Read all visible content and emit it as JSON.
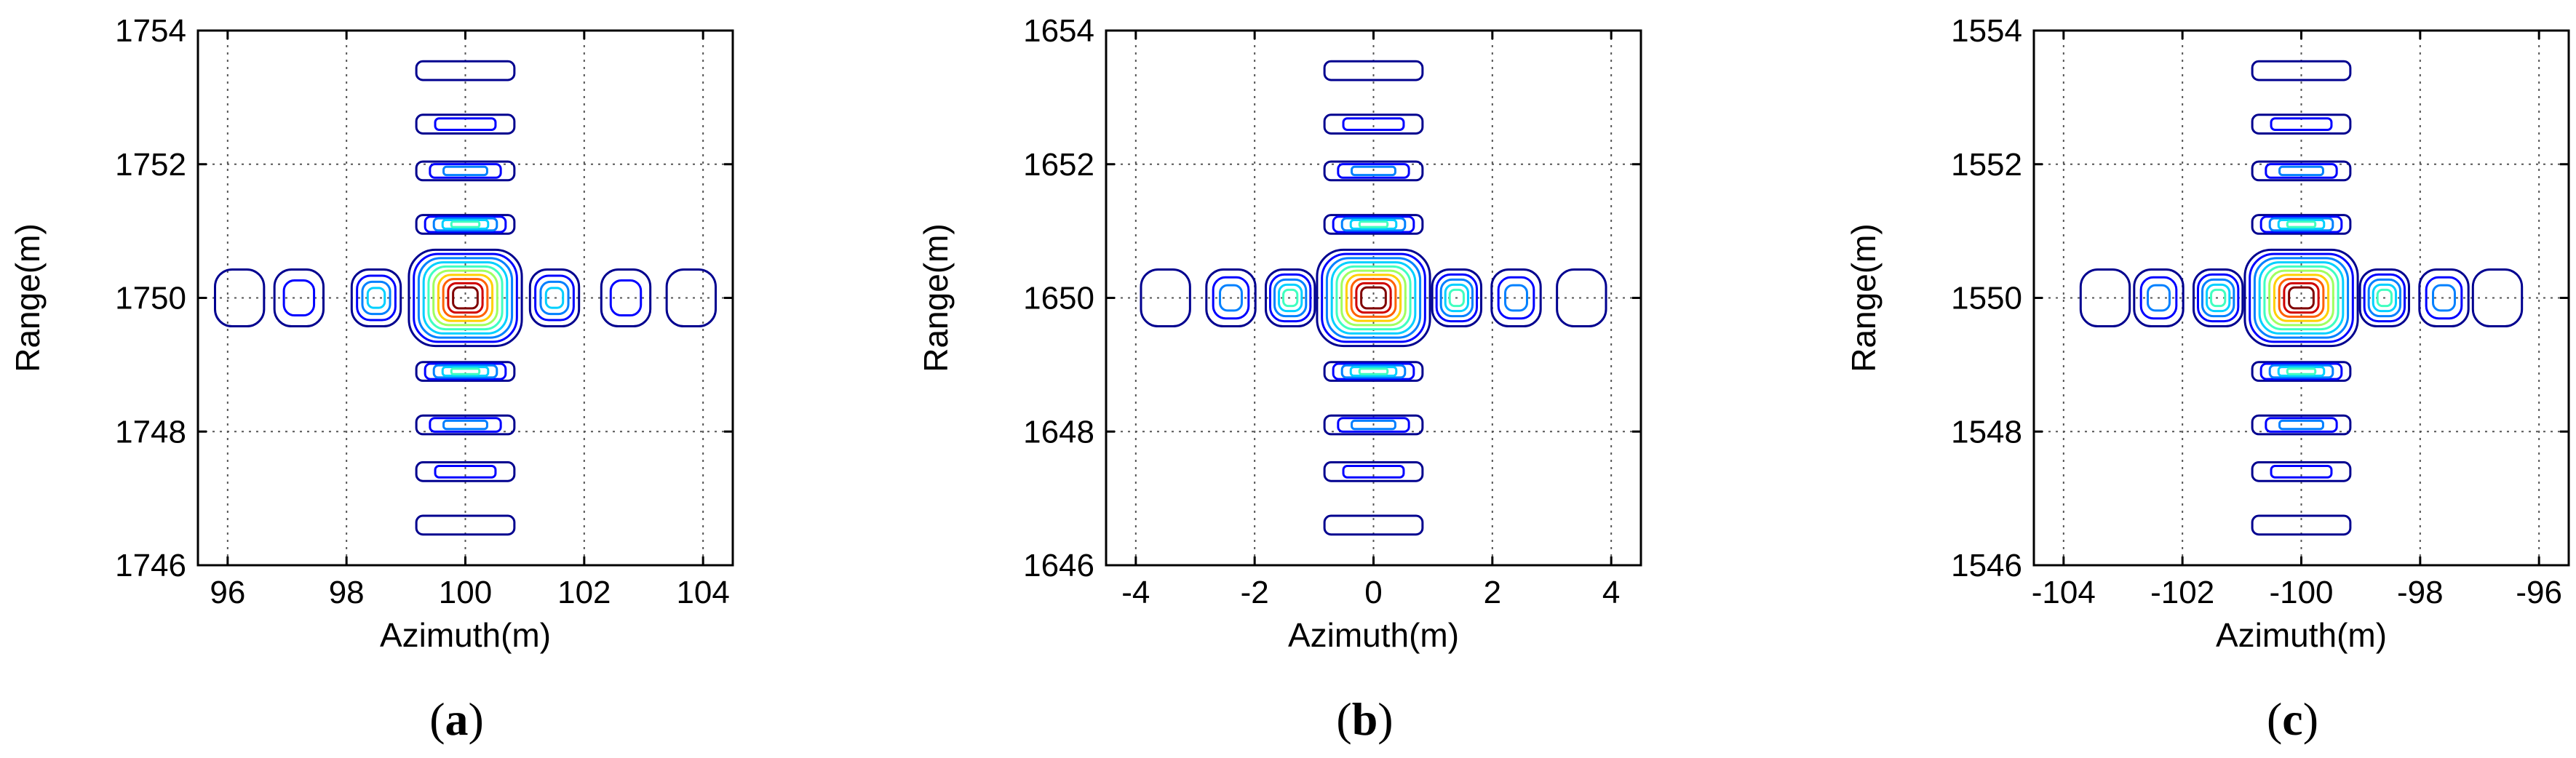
{
  "chart_data": [
    {
      "panel_label": "a",
      "type": "contour",
      "xlabel": "Azimuth(m)",
      "ylabel": "Range(m)",
      "xlim": [
        95.5,
        104.5
      ],
      "ylim": [
        1746,
        1754
      ],
      "xticks": [
        96,
        98,
        100,
        102,
        104
      ],
      "yticks": [
        1746,
        1748,
        1750,
        1752,
        1754
      ],
      "grid": true,
      "center": [
        100,
        1750
      ],
      "peak_x_offsets": [
        -3.8,
        -2.8,
        -1.5,
        0,
        1.5,
        2.7,
        3.8
      ],
      "peak_y_offsets": [
        -3.4,
        -2.6,
        -1.9,
        -1.1,
        0,
        1.1,
        1.9,
        2.6,
        3.4
      ]
    },
    {
      "panel_label": "b",
      "type": "contour",
      "xlabel": "Azimuth(m)",
      "ylabel": "Range(m)",
      "xlim": [
        -4.5,
        4.5
      ],
      "ylim": [
        1646,
        1654
      ],
      "xticks": [
        -4,
        -2,
        0,
        2,
        4
      ],
      "yticks": [
        1646,
        1648,
        1650,
        1652,
        1654
      ],
      "grid": true,
      "center": [
        0,
        1650
      ],
      "peak_x_offsets": [
        -3.5,
        -2.4,
        -1.4,
        0,
        1.4,
        2.4,
        3.5
      ],
      "peak_y_offsets": [
        -3.4,
        -2.6,
        -1.9,
        -1.1,
        0,
        1.1,
        1.9,
        2.6,
        3.4
      ]
    },
    {
      "panel_label": "c",
      "type": "contour",
      "xlabel": "Azimuth(m)",
      "ylabel": "Range(m)",
      "xlim": [
        -104.5,
        -95.5
      ],
      "ylim": [
        1546,
        1554
      ],
      "xticks": [
        -104,
        -102,
        -100,
        -98,
        -96
      ],
      "yticks": [
        1546,
        1548,
        1550,
        1552,
        1554
      ],
      "grid": true,
      "center": [
        -100,
        1550
      ],
      "peak_x_offsets": [
        -3.3,
        -2.4,
        -1.4,
        0,
        1.4,
        2.4,
        3.3
      ],
      "peak_y_offsets": [
        -3.4,
        -2.6,
        -1.9,
        -1.1,
        0,
        1.1,
        1.9,
        2.6,
        3.4
      ]
    }
  ],
  "colors": {
    "contour_levels": [
      "#00008f",
      "#0000ff",
      "#0080ff",
      "#00d0ff",
      "#40ffc0",
      "#a0ff60",
      "#ffd000",
      "#ff6000",
      "#d00000",
      "#800000"
    ],
    "grid": "#555555",
    "axis": "#000000"
  }
}
